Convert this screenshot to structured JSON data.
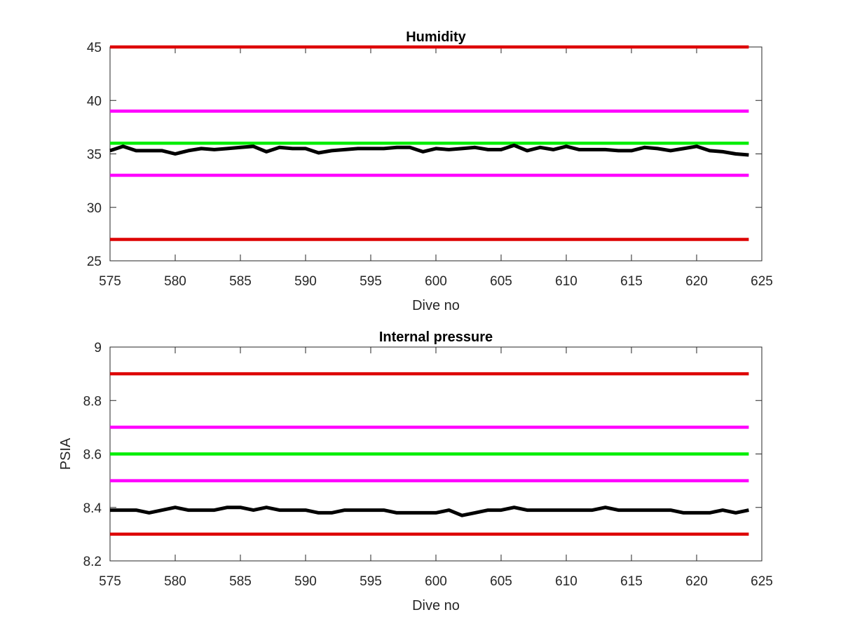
{
  "chart_data": [
    {
      "type": "line",
      "title": "Humidity",
      "xlabel": "Dive no",
      "ylabel": "",
      "xlim": [
        575,
        625
      ],
      "ylim": [
        25,
        45
      ],
      "xticks": [
        575,
        580,
        585,
        590,
        595,
        600,
        605,
        610,
        615,
        620,
        625
      ],
      "yticks": [
        25,
        30,
        35,
        40,
        45
      ],
      "grid": false,
      "series": [
        {
          "color": "#dd0000",
          "x": [
            575,
            624
          ],
          "y": [
            45,
            45
          ]
        },
        {
          "color": "#ff00ff",
          "x": [
            575,
            624
          ],
          "y": [
            39,
            39
          ]
        },
        {
          "color": "#00ee00",
          "x": [
            575,
            624
          ],
          "y": [
            36,
            36
          ]
        },
        {
          "color": "#ff00ff",
          "x": [
            575,
            624
          ],
          "y": [
            33,
            33
          ]
        },
        {
          "color": "#dd0000",
          "x": [
            575,
            624
          ],
          "y": [
            27,
            27
          ]
        },
        {
          "color": "#000000",
          "x": [
            575,
            576,
            577,
            578,
            579,
            580,
            581,
            582,
            583,
            584,
            585,
            586,
            587,
            588,
            589,
            590,
            591,
            592,
            593,
            594,
            595,
            596,
            597,
            598,
            599,
            600,
            601,
            602,
            603,
            604,
            605,
            606,
            607,
            608,
            609,
            610,
            611,
            612,
            613,
            614,
            615,
            616,
            617,
            618,
            619,
            620,
            621,
            622,
            623,
            624
          ],
          "y": [
            35.3,
            35.7,
            35.3,
            35.3,
            35.3,
            35.0,
            35.3,
            35.5,
            35.4,
            35.5,
            35.6,
            35.7,
            35.2,
            35.6,
            35.5,
            35.5,
            35.1,
            35.3,
            35.4,
            35.5,
            35.5,
            35.5,
            35.6,
            35.6,
            35.2,
            35.5,
            35.4,
            35.5,
            35.6,
            35.4,
            35.4,
            35.8,
            35.3,
            35.6,
            35.4,
            35.7,
            35.4,
            35.4,
            35.4,
            35.3,
            35.3,
            35.6,
            35.5,
            35.3,
            35.5,
            35.7,
            35.3,
            35.2,
            35.0,
            34.9
          ]
        }
      ]
    },
    {
      "type": "line",
      "title": "Internal pressure",
      "xlabel": "Dive no",
      "ylabel": "PSIA",
      "xlim": [
        575,
        625
      ],
      "ylim": [
        8.2,
        9.0
      ],
      "xticks": [
        575,
        580,
        585,
        590,
        595,
        600,
        605,
        610,
        615,
        620,
        625
      ],
      "yticks": [
        8.2,
        8.4,
        8.6,
        8.8,
        9.0
      ],
      "ytick_labels": [
        "8.2",
        "8.4",
        "8.6",
        "8.8",
        "9"
      ],
      "grid": false,
      "series": [
        {
          "color": "#dd0000",
          "x": [
            575,
            624
          ],
          "y": [
            8.9,
            8.9
          ]
        },
        {
          "color": "#ff00ff",
          "x": [
            575,
            624
          ],
          "y": [
            8.7,
            8.7
          ]
        },
        {
          "color": "#00ee00",
          "x": [
            575,
            624
          ],
          "y": [
            8.6,
            8.6
          ]
        },
        {
          "color": "#ff00ff",
          "x": [
            575,
            624
          ],
          "y": [
            8.5,
            8.5
          ]
        },
        {
          "color": "#dd0000",
          "x": [
            575,
            624
          ],
          "y": [
            8.3,
            8.3
          ]
        },
        {
          "color": "#000000",
          "x": [
            575,
            576,
            577,
            578,
            579,
            580,
            581,
            582,
            583,
            584,
            585,
            586,
            587,
            588,
            589,
            590,
            591,
            592,
            593,
            594,
            595,
            596,
            597,
            598,
            599,
            600,
            601,
            602,
            603,
            604,
            605,
            606,
            607,
            608,
            609,
            610,
            611,
            612,
            613,
            614,
            615,
            616,
            617,
            618,
            619,
            620,
            621,
            622,
            623,
            624
          ],
          "y": [
            8.39,
            8.39,
            8.39,
            8.38,
            8.39,
            8.4,
            8.39,
            8.39,
            8.39,
            8.4,
            8.4,
            8.39,
            8.4,
            8.39,
            8.39,
            8.39,
            8.38,
            8.38,
            8.39,
            8.39,
            8.39,
            8.39,
            8.38,
            8.38,
            8.38,
            8.38,
            8.39,
            8.37,
            8.38,
            8.39,
            8.39,
            8.4,
            8.39,
            8.39,
            8.39,
            8.39,
            8.39,
            8.39,
            8.4,
            8.39,
            8.39,
            8.39,
            8.39,
            8.39,
            8.38,
            8.38,
            8.38,
            8.39,
            8.38,
            8.39
          ]
        }
      ]
    }
  ]
}
